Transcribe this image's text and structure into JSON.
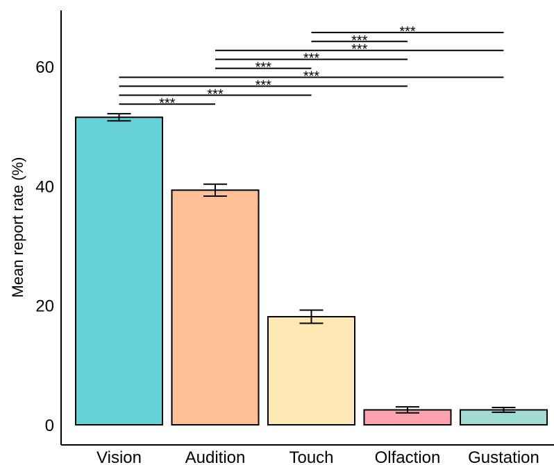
{
  "chart_data": {
    "type": "bar",
    "categories": [
      "Vision",
      "Audition",
      "Touch",
      "Olfaction",
      "Gustation"
    ],
    "values": [
      51.5,
      39.3,
      18.1,
      2.5,
      2.5
    ],
    "errors": [
      0.6,
      1.0,
      1.1,
      0.5,
      0.4
    ],
    "colors": [
      "#66d1d6",
      "#fdbf93",
      "#fee9b4",
      "#fca3ad",
      "#a1dcd3"
    ],
    "ylabel": "Mean report rate (%)",
    "xlabel": "",
    "yticks": [
      0,
      20,
      40,
      60
    ],
    "ylim": [
      -1.5,
      68
    ],
    "grid": false,
    "significance": [
      {
        "from": "Vision",
        "to": "Audition",
        "label": "***",
        "y": 53.7
      },
      {
        "from": "Vision",
        "to": "Touch",
        "label": "***",
        "y": 55.2
      },
      {
        "from": "Vision",
        "to": "Olfaction",
        "label": "***",
        "y": 56.7
      },
      {
        "from": "Vision",
        "to": "Gustation",
        "label": "***",
        "y": 58.2
      },
      {
        "from": "Audition",
        "to": "Touch",
        "label": "***",
        "y": 59.7
      },
      {
        "from": "Audition",
        "to": "Olfaction",
        "label": "***",
        "y": 61.2
      },
      {
        "from": "Audition",
        "to": "Gustation",
        "label": "***",
        "y": 62.7
      },
      {
        "from": "Touch",
        "to": "Olfaction",
        "label": "***",
        "y": 64.2
      },
      {
        "from": "Touch",
        "to": "Gustation",
        "label": "***",
        "y": 65.7
      }
    ]
  }
}
